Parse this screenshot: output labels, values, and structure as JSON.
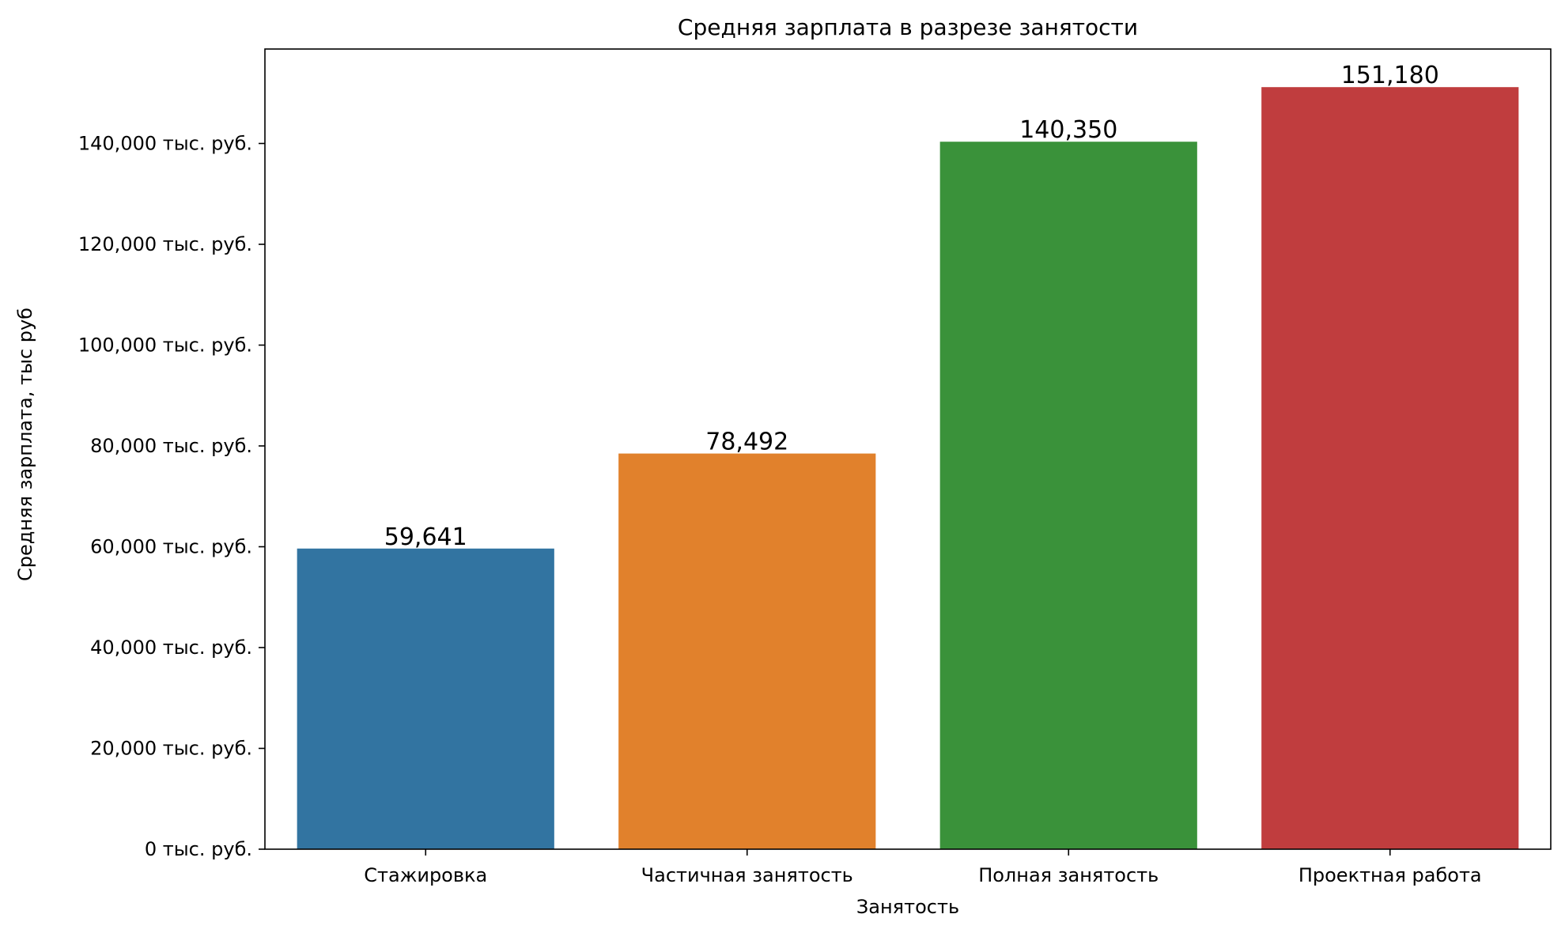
{
  "chart_data": {
    "type": "bar",
    "title": "Средняя зарплата в разрезе занятости",
    "xlabel": "Занятость",
    "ylabel": "Средняя зарплата, тыс руб",
    "categories": [
      "Стажировка",
      "Частичная занятость",
      "Полная занятость",
      "Проектная работа"
    ],
    "values": [
      59641,
      78492,
      140350,
      151180
    ],
    "value_labels": [
      "59,641",
      "78,492",
      "140,350",
      "151,180"
    ],
    "colors": [
      "#3274a1",
      "#e1812c",
      "#3a923a",
      "#c03d3e"
    ],
    "ylim": [
      0,
      158739
    ],
    "yticks": [
      0,
      20000,
      40000,
      60000,
      80000,
      100000,
      120000,
      140000
    ],
    "ytick_labels": [
      "0 тыс. руб.",
      "20,000 тыс. руб.",
      "40,000 тыс. руб.",
      "60,000 тыс. руб.",
      "80,000 тыс. руб.",
      "100,000 тыс. руб.",
      "120,000 тыс. руб.",
      "140,000 тыс. руб."
    ],
    "grid": false,
    "legend": "none"
  }
}
